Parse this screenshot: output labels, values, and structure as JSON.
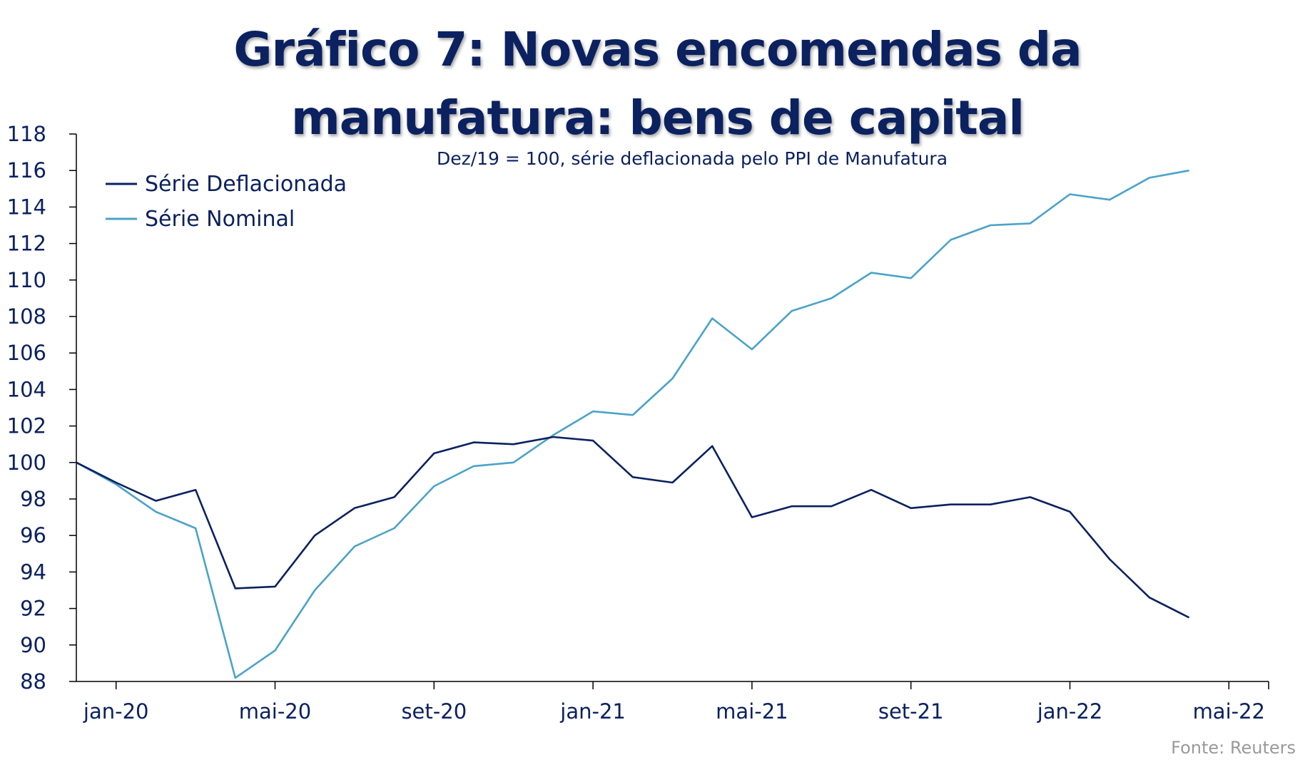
{
  "chart_data": {
    "type": "line",
    "title_lines": [
      "Gráfico 7: Novas encomendas da",
      "manufatura: bens de capital"
    ],
    "subtitle": "Dez/19 = 100, série deflacionada pelo PPI de Manufatura",
    "source": "Fonte:  Reuters",
    "ylim": [
      88,
      118
    ],
    "yticks": [
      88,
      90,
      92,
      94,
      96,
      98,
      100,
      102,
      104,
      106,
      108,
      110,
      112,
      114,
      116,
      118
    ],
    "xtick_labels": [
      "jan-20",
      "mai-20",
      "set-20",
      "jan-21",
      "mai-21",
      "set-21",
      "jan-22",
      "mai-22"
    ],
    "xtick_month_index": [
      1,
      5,
      9,
      13,
      17,
      21,
      25,
      29
    ],
    "x_months": [
      "dez-19",
      "jan-20",
      "fev-20",
      "mar-20",
      "abr-20",
      "mai-20",
      "jun-20",
      "jul-20",
      "ago-20",
      "set-20",
      "out-20",
      "nov-20",
      "dez-20",
      "jan-21",
      "fev-21",
      "mar-21",
      "abr-21",
      "mai-21",
      "jun-21",
      "jul-21",
      "ago-21",
      "set-21",
      "out-21",
      "nov-21",
      "dez-21",
      "jan-22",
      "fev-22",
      "mar-22",
      "abr-22"
    ],
    "legend_position": "top-left",
    "grid": false,
    "series": [
      {
        "name": "Série Deflacionada",
        "color": "#0b2160",
        "values": [
          100.0,
          98.9,
          97.9,
          98.5,
          93.1,
          93.2,
          96.0,
          97.5,
          98.1,
          100.5,
          101.1,
          101.0,
          101.4,
          101.2,
          99.2,
          98.9,
          100.9,
          97.0,
          97.6,
          97.6,
          98.5,
          97.5,
          97.7,
          97.7,
          98.1,
          97.3,
          94.7,
          92.6,
          91.5
        ]
      },
      {
        "name": "Série Nominal",
        "color": "#4aa3c8",
        "values": [
          100.0,
          98.8,
          97.3,
          96.4,
          88.2,
          89.7,
          93.0,
          95.4,
          96.4,
          98.7,
          99.8,
          100.0,
          101.5,
          102.8,
          102.6,
          104.6,
          107.9,
          106.2,
          108.3,
          109.0,
          110.4,
          110.1,
          112.2,
          113.0,
          113.1,
          114.7,
          114.4,
          115.6,
          116.0
        ]
      }
    ]
  }
}
